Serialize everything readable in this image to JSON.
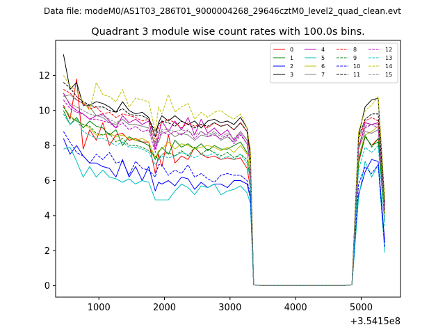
{
  "header_text": "Data file: modeM0/AS1T03_286T01_9000004268_29646cztM0_level2_quad_clean.evt",
  "chart_data": {
    "type": "line",
    "title": "Quadrant 3 module wise count rates with 100.0s bins.",
    "xlabel": "",
    "ylabel": "",
    "offset_text": "+3.5415e8",
    "xlim": [
      340,
      5600
    ],
    "ylim": [
      -0.65,
      14.0
    ],
    "xticks": [
      1000,
      2000,
      3000,
      4000,
      5000
    ],
    "yticks": [
      0,
      2,
      4,
      6,
      8,
      10,
      12
    ],
    "xtick_labels": [
      "1000",
      "2000",
      "3000",
      "4000",
      "5000"
    ],
    "ytick_labels": [
      "0",
      "2",
      "4",
      "6",
      "8",
      "10",
      "12"
    ],
    "legend_position": "top-right",
    "x": [
      460,
      560,
      660,
      760,
      860,
      960,
      1060,
      1160,
      1260,
      1360,
      1460,
      1560,
      1660,
      1760,
      1860,
      1910,
      1960,
      2060,
      2160,
      2260,
      2360,
      2460,
      2560,
      2660,
      2760,
      2860,
      2960,
      3060,
      3160,
      3260,
      3310,
      3360,
      3460,
      3560,
      3660,
      3760,
      3860,
      3960,
      4060,
      4160,
      4260,
      4360,
      4460,
      4560,
      4660,
      4760,
      4860,
      4960,
      5060,
      5160,
      5260,
      5360
    ],
    "series": [
      {
        "name": "0",
        "color": "#ff0000",
        "dash": "solid",
        "values": [
          10.3,
          9.5,
          11.8,
          7.8,
          8.9,
          8.3,
          9.3,
          8.0,
          8.6,
          8.7,
          8.3,
          8.4,
          8.2,
          8.2,
          6.4,
          7.5,
          6.8,
          8.6,
          7.0,
          7.4,
          7.2,
          7.9,
          7.5,
          7.3,
          7.4,
          7.2,
          7.3,
          7.2,
          7.3,
          6.7,
          5.6,
          0.05,
          0.02,
          0.02,
          0.02,
          0.02,
          0.02,
          0.02,
          0.02,
          0.02,
          0.02,
          0.02,
          0.02,
          0.02,
          0.02,
          0.02,
          0.05,
          7.0,
          8.5,
          8.0,
          8.4,
          4.6
        ]
      },
      {
        "name": "1",
        "color": "#008000",
        "dash": "solid",
        "values": [
          10.0,
          9.2,
          9.6,
          9.0,
          9.4,
          9.1,
          9.0,
          8.6,
          8.9,
          8.0,
          8.5,
          8.3,
          8.2,
          8.0,
          7.2,
          7.6,
          7.9,
          7.5,
          8.3,
          7.9,
          8.1,
          7.8,
          8.1,
          7.7,
          8.0,
          7.8,
          7.8,
          8.0,
          8.2,
          7.6,
          6.3,
          0.05,
          0.02,
          0.02,
          0.02,
          0.02,
          0.02,
          0.02,
          0.02,
          0.02,
          0.02,
          0.02,
          0.02,
          0.02,
          0.02,
          0.02,
          0.05,
          7.2,
          8.5,
          8.0,
          8.2,
          4.2
        ]
      },
      {
        "name": "2",
        "color": "#0000ff",
        "dash": "solid",
        "values": [
          8.4,
          7.5,
          8.0,
          7.4,
          7.0,
          7.0,
          6.8,
          6.7,
          6.2,
          7.2,
          6.2,
          6.8,
          6.0,
          6.8,
          5.4,
          5.9,
          5.8,
          6.0,
          5.7,
          6.2,
          6.1,
          5.5,
          5.9,
          5.6,
          5.8,
          5.8,
          5.6,
          6.0,
          6.0,
          5.8,
          5.0,
          0.05,
          0.02,
          0.02,
          0.02,
          0.02,
          0.02,
          0.02,
          0.02,
          0.02,
          0.02,
          0.02,
          0.02,
          0.02,
          0.02,
          0.02,
          0.05,
          5.2,
          6.5,
          7.2,
          7.1,
          2.5
        ]
      },
      {
        "name": "3",
        "color": "#000000",
        "dash": "solid",
        "values": [
          13.2,
          11.2,
          11.6,
          10.3,
          10.3,
          10.5,
          10.4,
          10.2,
          9.9,
          10.5,
          10.0,
          9.8,
          9.9,
          9.6,
          8.5,
          9.3,
          9.7,
          9.4,
          9.7,
          9.4,
          9.2,
          9.4,
          9.0,
          9.4,
          9.5,
          9.3,
          9.4,
          9.2,
          9.6,
          9.0,
          7.5,
          0.05,
          0.02,
          0.02,
          0.02,
          0.02,
          0.02,
          0.02,
          0.02,
          0.02,
          0.02,
          0.02,
          0.02,
          0.02,
          0.02,
          0.02,
          0.05,
          8.6,
          10.2,
          10.6,
          10.7,
          4.8
        ]
      },
      {
        "name": "4",
        "color": "#bf00bf",
        "dash": "solid",
        "values": [
          11.0,
          10.3,
          10.0,
          9.8,
          9.5,
          9.7,
          9.8,
          9.4,
          9.0,
          9.7,
          9.3,
          9.5,
          9.2,
          9.4,
          7.8,
          8.6,
          9.4,
          8.8,
          9.4,
          8.9,
          9.6,
          8.6,
          9.5,
          8.7,
          9.0,
          8.6,
          8.9,
          8.3,
          8.8,
          8.3,
          7.0,
          0.05,
          0.02,
          0.02,
          0.02,
          0.02,
          0.02,
          0.02,
          0.02,
          0.02,
          0.02,
          0.02,
          0.02,
          0.02,
          0.02,
          0.02,
          0.05,
          7.8,
          9.3,
          9.2,
          9.3,
          4.4
        ]
      },
      {
        "name": "5",
        "color": "#00bfbf",
        "dash": "solid",
        "values": [
          7.8,
          7.9,
          7.1,
          6.2,
          6.8,
          6.2,
          6.6,
          6.2,
          6.1,
          5.9,
          6.1,
          5.8,
          6.0,
          5.9,
          4.9,
          4.9,
          4.9,
          4.9,
          5.4,
          5.8,
          5.6,
          5.2,
          5.7,
          5.6,
          5.8,
          5.2,
          5.4,
          5.5,
          5.7,
          5.3,
          4.7,
          0.05,
          0.02,
          0.02,
          0.02,
          0.02,
          0.02,
          0.02,
          0.02,
          0.02,
          0.02,
          0.02,
          0.02,
          0.02,
          0.02,
          0.02,
          0.05,
          5.0,
          7.1,
          6.2,
          6.9,
          1.9
        ]
      },
      {
        "name": "6",
        "color": "#bfbf00",
        "dash": "solid",
        "values": [
          10.2,
          9.7,
          9.4,
          9.2,
          9.0,
          8.6,
          8.6,
          8.7,
          8.5,
          8.6,
          8.4,
          8.3,
          8.4,
          8.2,
          7.3,
          7.7,
          7.8,
          8.2,
          7.8,
          8.1,
          8.0,
          7.8,
          7.9,
          8.0,
          7.9,
          7.7,
          7.9,
          7.6,
          8.0,
          7.5,
          6.5,
          0.05,
          0.02,
          0.02,
          0.02,
          0.02,
          0.02,
          0.02,
          0.02,
          0.02,
          0.02,
          0.02,
          0.02,
          0.02,
          0.02,
          0.02,
          0.05,
          7.4,
          8.6,
          8.8,
          9.1,
          4.1
        ]
      },
      {
        "name": "7",
        "color": "#808080",
        "dash": "solid",
        "values": [
          10.8,
          10.9,
          10.6,
          10.4,
          10.2,
          9.7,
          9.6,
          9.3,
          9.2,
          9.5,
          9.2,
          9.2,
          9.1,
          9.0,
          8.0,
          8.2,
          8.7,
          8.8,
          8.5,
          8.7,
          8.6,
          8.3,
          8.6,
          8.5,
          8.7,
          8.3,
          8.5,
          8.2,
          8.7,
          8.1,
          6.9,
          0.05,
          0.02,
          0.02,
          0.02,
          0.02,
          0.02,
          0.02,
          0.02,
          0.02,
          0.02,
          0.02,
          0.02,
          0.02,
          0.02,
          0.02,
          0.05,
          7.8,
          8.8,
          8.7,
          8.9,
          4.3
        ]
      },
      {
        "name": "8",
        "color": "#ff0000",
        "dash": "dashed",
        "values": [
          11.2,
          11.0,
          10.6,
          10.4,
          10.1,
          10.2,
          9.8,
          9.9,
          9.6,
          9.8,
          9.7,
          9.6,
          9.4,
          9.5,
          8.2,
          9.0,
          9.3,
          9.5,
          9.3,
          9.0,
          9.3,
          9.1,
          9.2,
          9.0,
          9.3,
          9.1,
          9.2,
          8.9,
          9.3,
          8.8,
          7.3,
          0.05,
          0.02,
          0.02,
          0.02,
          0.02,
          0.02,
          0.02,
          0.02,
          0.02,
          0.02,
          0.02,
          0.02,
          0.02,
          0.02,
          0.02,
          0.05,
          8.3,
          9.4,
          9.6,
          9.4,
          4.5
        ]
      },
      {
        "name": "9",
        "color": "#008000",
        "dash": "dashed",
        "values": [
          10.2,
          9.6,
          9.4,
          9.2,
          9.1,
          8.7,
          8.6,
          8.7,
          8.2,
          8.4,
          8.0,
          8.0,
          7.9,
          7.7,
          7.4,
          7.2,
          7.5,
          7.6,
          7.4,
          7.7,
          7.4,
          7.9,
          7.5,
          7.8,
          7.6,
          7.4,
          7.6,
          7.3,
          7.5,
          7.2,
          6.1,
          0.05,
          0.02,
          0.02,
          0.02,
          0.02,
          0.02,
          0.02,
          0.02,
          0.02,
          0.02,
          0.02,
          0.02,
          0.02,
          0.02,
          0.02,
          0.05,
          7.0,
          8.6,
          7.9,
          8.4,
          3.7
        ]
      },
      {
        "name": "10",
        "color": "#0000ff",
        "dash": "dashed",
        "values": [
          8.8,
          8.2,
          7.6,
          7.4,
          7.0,
          7.5,
          7.2,
          7.6,
          7.0,
          7.1,
          6.3,
          7.1,
          6.7,
          6.6,
          6.2,
          6.9,
          6.9,
          6.3,
          6.6,
          6.4,
          6.9,
          6.2,
          6.4,
          6.1,
          5.9,
          6.3,
          6.4,
          6.3,
          6.3,
          6.0,
          5.2,
          0.05,
          0.02,
          0.02,
          0.02,
          0.02,
          0.02,
          0.02,
          0.02,
          0.02,
          0.02,
          0.02,
          0.02,
          0.02,
          0.02,
          0.02,
          0.05,
          5.8,
          6.8,
          6.4,
          6.9,
          2.2
        ]
      },
      {
        "name": "11",
        "color": "#000000",
        "dash": "dashed",
        "values": [
          11.6,
          11.3,
          10.8,
          10.5,
          10.3,
          10.2,
          10.2,
          10.0,
          9.9,
          10.1,
          9.8,
          9.7,
          9.7,
          9.5,
          8.8,
          9.2,
          9.4,
          9.3,
          9.1,
          9.4,
          9.2,
          9.0,
          9.2,
          9.1,
          9.3,
          9.1,
          9.2,
          8.9,
          9.3,
          8.8,
          7.4,
          0.05,
          0.02,
          0.02,
          0.02,
          0.02,
          0.02,
          0.02,
          0.02,
          0.02,
          0.02,
          0.02,
          0.02,
          0.02,
          0.02,
          0.02,
          0.05,
          8.5,
          9.5,
          9.8,
          9.8,
          4.6
        ]
      },
      {
        "name": "12",
        "color": "#bf00bf",
        "dash": "dashed",
        "values": [
          10.6,
          10.1,
          9.9,
          9.8,
          9.5,
          9.5,
          9.4,
          9.3,
          9.0,
          9.3,
          8.9,
          9.1,
          8.8,
          8.9,
          7.6,
          8.4,
          8.8,
          8.6,
          8.8,
          8.6,
          8.9,
          8.4,
          8.8,
          8.5,
          8.6,
          8.4,
          8.6,
          8.1,
          8.6,
          8.1,
          6.8,
          0.05,
          0.02,
          0.02,
          0.02,
          0.02,
          0.02,
          0.02,
          0.02,
          0.02,
          0.02,
          0.02,
          0.02,
          0.02,
          0.02,
          0.02,
          0.05,
          7.9,
          9.0,
          9.2,
          9.0,
          4.3
        ]
      },
      {
        "name": "13",
        "color": "#00bfbf",
        "dash": "dashed",
        "values": [
          9.8,
          9.2,
          9.5,
          8.8,
          8.6,
          8.4,
          8.4,
          8.2,
          8.0,
          8.2,
          7.9,
          7.9,
          7.8,
          7.6,
          6.9,
          7.2,
          7.4,
          7.3,
          7.4,
          7.6,
          7.5,
          7.3,
          7.5,
          7.4,
          7.6,
          7.2,
          7.4,
          7.2,
          7.5,
          7.0,
          6.0,
          0.05,
          0.02,
          0.02,
          0.02,
          0.02,
          0.02,
          0.02,
          0.02,
          0.02,
          0.02,
          0.02,
          0.02,
          0.02,
          0.02,
          0.02,
          0.05,
          6.6,
          7.9,
          7.6,
          8.0,
          3.4
        ]
      },
      {
        "name": "14",
        "color": "#bfbf00",
        "dash": "dashed",
        "values": [
          12.0,
          11.4,
          11.1,
          10.5,
          10.0,
          11.6,
          10.9,
          10.8,
          10.5,
          11.2,
          10.2,
          10.7,
          10.6,
          10.5,
          8.8,
          10.2,
          9.8,
          10.9,
          9.9,
          10.2,
          10.4,
          9.5,
          9.9,
          9.6,
          9.9,
          10.0,
          9.7,
          9.5,
          9.8,
          9.0,
          7.8,
          0.05,
          0.02,
          0.02,
          0.02,
          0.02,
          0.02,
          0.02,
          0.02,
          0.02,
          0.02,
          0.02,
          0.02,
          0.02,
          0.02,
          0.02,
          0.05,
          8.8,
          10.0,
          10.3,
          10.8,
          4.9
        ]
      },
      {
        "name": "15",
        "color": "#808080",
        "dash": "dashed",
        "values": [
          10.9,
          10.4,
          10.2,
          10.0,
          9.8,
          9.7,
          9.7,
          9.5,
          9.3,
          9.5,
          9.2,
          9.2,
          9.1,
          9.0,
          8.1,
          8.6,
          8.9,
          8.9,
          8.8,
          8.9,
          8.8,
          8.6,
          8.8,
          8.6,
          8.8,
          8.5,
          8.7,
          8.4,
          8.8,
          8.3,
          7.0,
          0.05,
          0.02,
          0.02,
          0.02,
          0.02,
          0.02,
          0.02,
          0.02,
          0.02,
          0.02,
          0.02,
          0.02,
          0.02,
          0.02,
          0.02,
          0.05,
          8.0,
          9.1,
          9.2,
          9.2,
          4.4
        ]
      }
    ]
  }
}
